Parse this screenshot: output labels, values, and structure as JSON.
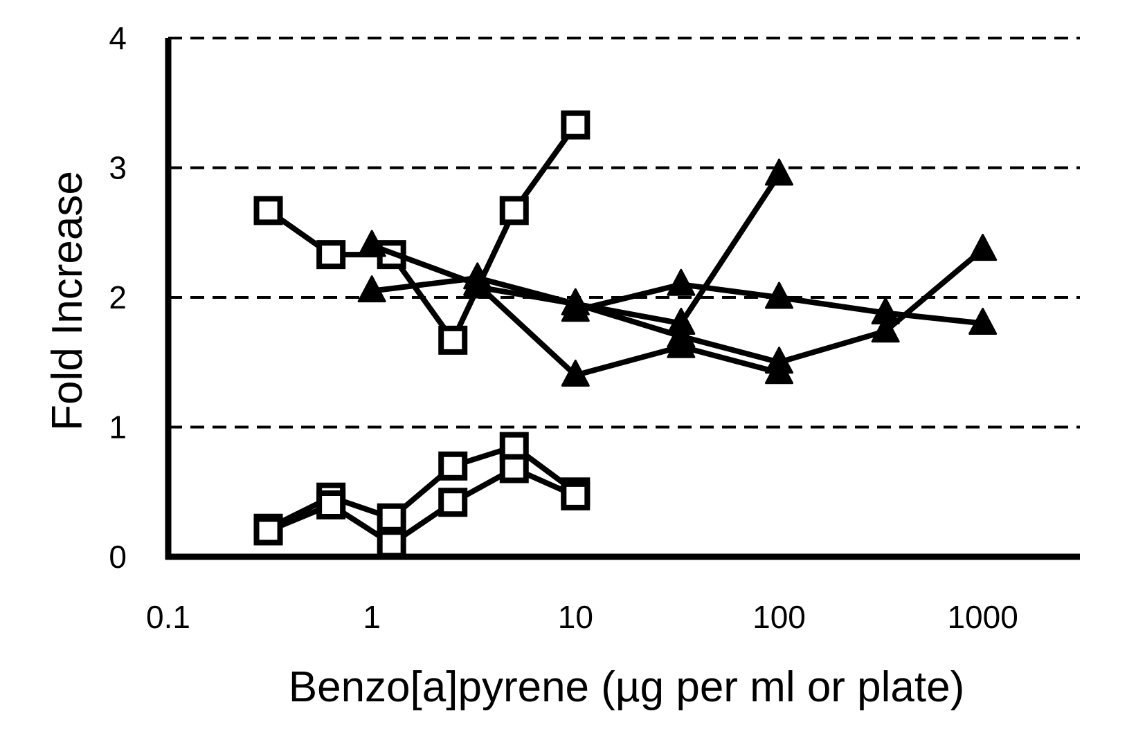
{
  "chart_data": {
    "type": "line",
    "title": "",
    "xlabel": "Benzo[a]pyrene (µg per ml or plate)",
    "ylabel": "Fold Increase",
    "x_scale": "log",
    "xlim": [
      0.1,
      3000
    ],
    "ylim": [
      0,
      4
    ],
    "x_ticks": [
      0.1,
      1,
      10,
      100,
      1000
    ],
    "x_tick_labels": [
      "0.1",
      "1",
      "10",
      "100",
      "1000"
    ],
    "y_ticks": [
      0,
      1,
      2,
      3,
      4
    ],
    "y_tick_labels": [
      "0",
      "1",
      "2",
      "3",
      "4"
    ],
    "grid": "horizontal-dashed",
    "legend": "none",
    "colors": {
      "line": "#000000",
      "square_fill": "#ffffff",
      "triangle_fill": "#000000"
    },
    "series": [
      {
        "marker": "square",
        "x": [
          0.31,
          0.63,
          1.25,
          2.5,
          5,
          10
        ],
        "y": [
          2.67,
          2.33,
          2.33,
          1.67,
          2.67,
          3.33
        ]
      },
      {
        "marker": "square",
        "x": [
          0.31,
          0.63,
          1.25,
          2.5,
          5,
          10
        ],
        "y": [
          0.22,
          0.46,
          0.3,
          0.7,
          0.85,
          0.5
        ]
      },
      {
        "marker": "square",
        "x": [
          0.31,
          0.63,
          1.25,
          2.5,
          5,
          10
        ],
        "y": [
          0.2,
          0.4,
          0.1,
          0.42,
          0.68,
          0.47
        ]
      },
      {
        "marker": "triangle",
        "x": [
          1,
          3.3,
          10,
          33,
          100
        ],
        "y": [
          2.4,
          2.1,
          1.4,
          1.62,
          1.42
        ]
      },
      {
        "marker": "triangle",
        "x": [
          1,
          3.3,
          10,
          33,
          100
        ],
        "y": [
          2.05,
          2.15,
          1.95,
          1.8,
          2.95
        ]
      },
      {
        "marker": "triangle",
        "x": [
          3.3,
          10,
          33,
          100,
          333,
          1000
        ],
        "y": [
          2.08,
          1.95,
          1.7,
          1.5,
          1.74,
          2.37
        ]
      },
      {
        "marker": "triangle",
        "x": [
          10,
          33,
          100,
          333,
          1000
        ],
        "y": [
          1.9,
          2.1,
          2.0,
          1.88,
          1.8
        ]
      }
    ]
  }
}
